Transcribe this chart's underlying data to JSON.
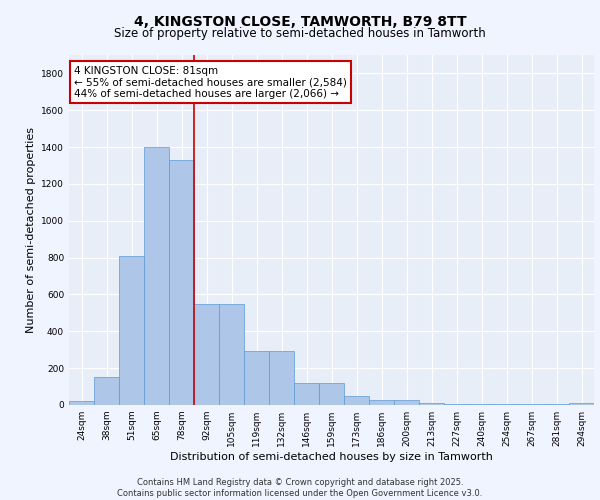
{
  "title_line1": "4, KINGSTON CLOSE, TAMWORTH, B79 8TT",
  "title_line2": "Size of property relative to semi-detached houses in Tamworth",
  "xlabel": "Distribution of semi-detached houses by size in Tamworth",
  "ylabel": "Number of semi-detached properties",
  "categories": [
    "24sqm",
    "38sqm",
    "51sqm",
    "65sqm",
    "78sqm",
    "92sqm",
    "105sqm",
    "119sqm",
    "132sqm",
    "146sqm",
    "159sqm",
    "173sqm",
    "186sqm",
    "200sqm",
    "213sqm",
    "227sqm",
    "240sqm",
    "254sqm",
    "267sqm",
    "281sqm",
    "294sqm"
  ],
  "values": [
    20,
    150,
    810,
    1400,
    1330,
    550,
    550,
    295,
    295,
    120,
    120,
    50,
    25,
    25,
    10,
    5,
    5,
    5,
    5,
    5,
    10
  ],
  "bar_color": "#aec6e8",
  "bar_edge_color": "#5b9bd5",
  "background_color": "#e8eef8",
  "grid_color": "#ffffff",
  "annotation_text": "4 KINGSTON CLOSE: 81sqm\n← 55% of semi-detached houses are smaller (2,584)\n44% of semi-detached houses are larger (2,066) →",
  "annotation_box_color": "#ffffff",
  "annotation_box_edge": "#cc0000",
  "vline_x": 4.5,
  "vline_color": "#cc0000",
  "ylim_max": 1900,
  "yticks": [
    0,
    200,
    400,
    600,
    800,
    1000,
    1200,
    1400,
    1600,
    1800
  ],
  "footer_line1": "Contains HM Land Registry data © Crown copyright and database right 2025.",
  "footer_line2": "Contains public sector information licensed under the Open Government Licence v3.0.",
  "title_fontsize": 10,
  "subtitle_fontsize": 8.5,
  "tick_fontsize": 6.5,
  "ylabel_fontsize": 8,
  "xlabel_fontsize": 8,
  "annotation_fontsize": 7.5,
  "footer_fontsize": 6
}
